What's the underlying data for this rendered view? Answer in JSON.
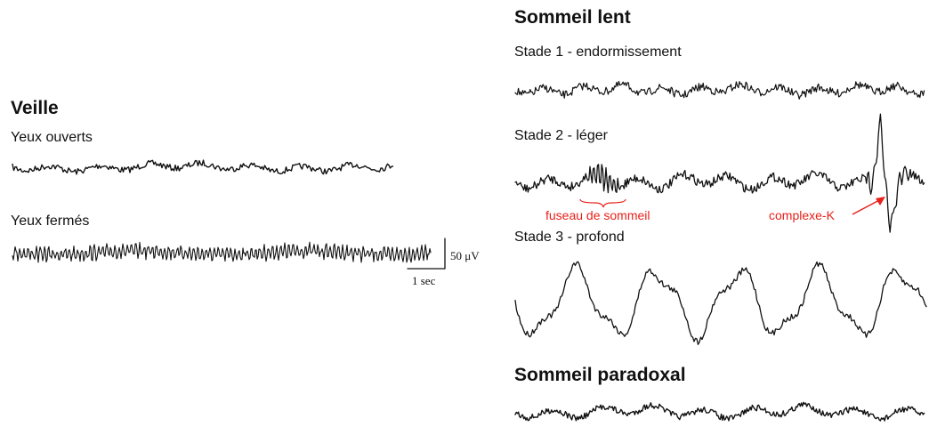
{
  "wake": {
    "title": "Veille",
    "eyes_open": "Yeux ouverts",
    "eyes_closed": "Yeux fermés",
    "scale_amplitude": "50 μV",
    "scale_time": "1 sec"
  },
  "slow_sleep": {
    "title": "Sommeil lent",
    "stage1": "Stade 1 - endormissement",
    "stage2": "Stade 2 - léger",
    "stage3": "Stade 3 - profond",
    "spindle_label": "fuseau de sommeil",
    "kcomplex_label": "complexe-K"
  },
  "rem_sleep": {
    "title": "Sommeil paradoxal"
  },
  "colors": {
    "trace": "#111111",
    "annotation": "#e8201a"
  }
}
